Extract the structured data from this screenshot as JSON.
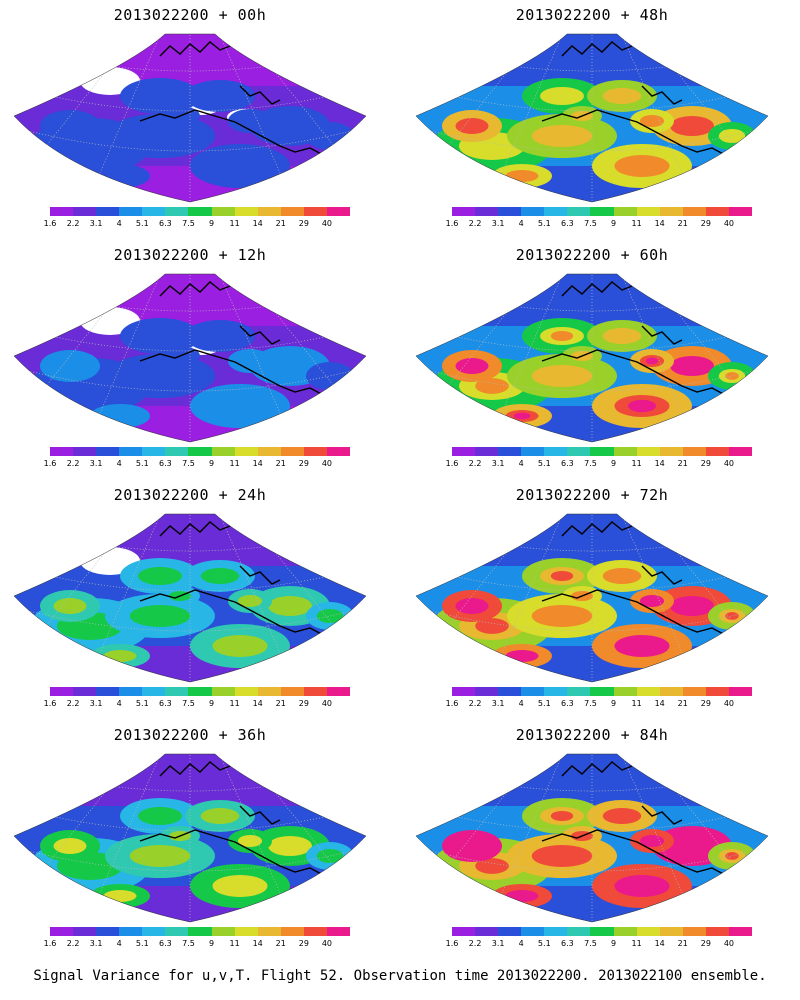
{
  "caption": "Signal Variance for u,v,T. Flight 52. Observation time 2013022200. 2013022100 ensemble.",
  "colorbar": {
    "labels": [
      "1.6",
      "2.2",
      "3.1",
      "4",
      "5.1",
      "6.3",
      "7.5",
      "9",
      "11",
      "14",
      "21",
      "29",
      "40"
    ],
    "colors": [
      "#9b1fe0",
      "#6a2cd6",
      "#2a4fd8",
      "#1b8fe8",
      "#27b6e6",
      "#2fc8b0",
      "#16c848",
      "#9ad02a",
      "#d8dc2a",
      "#e8b830",
      "#f08a2a",
      "#ef4a3a",
      "#ea1a8c"
    ]
  },
  "panels": [
    {
      "title": "2013022200 + 00h",
      "level": 0
    },
    {
      "title": "2013022200 + 48h",
      "level": 4
    },
    {
      "title": "2013022200 + 12h",
      "level": 1
    },
    {
      "title": "2013022200 + 60h",
      "level": 5
    },
    {
      "title": "2013022200 + 24h",
      "level": 2
    },
    {
      "title": "2013022200 + 72h",
      "level": 6
    },
    {
      "title": "2013022200 + 36h",
      "level": 3
    },
    {
      "title": "2013022200 + 84h",
      "level": 7
    }
  ]
}
